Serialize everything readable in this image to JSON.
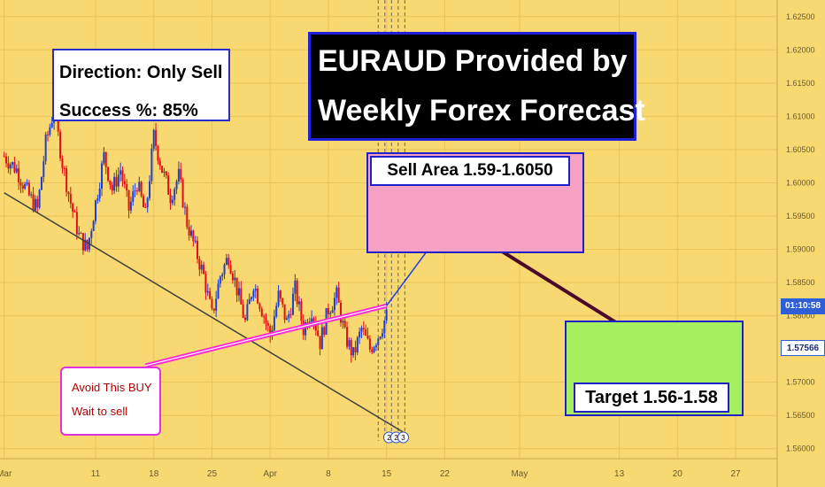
{
  "title": {
    "line1": "EURAUD Provided by",
    "line2": "Weekly Forex Forecast"
  },
  "direction_box": {
    "direction": "Direction: Only Sell",
    "success": "Success %:  85%"
  },
  "sell_area": {
    "label": "Sell Area 1.59-1.6050",
    "from": 1.59,
    "to": 1.605
  },
  "target_area": {
    "label": "Target 1.56-1.58",
    "from": 1.56,
    "to": 1.58
  },
  "avoid_box": {
    "line1": "Avoid This BUY",
    "line2": "Wait to sell"
  },
  "price_tags": {
    "time": "01:10:58",
    "last": "1.57566"
  },
  "event_markers": [
    "2",
    "2",
    "3"
  ],
  "colors": {
    "background": "#f8d870",
    "bull_candle": "#1e3fd0",
    "bear_candle": "#e01010",
    "trendline": "#404040",
    "avoid_line": "#ff2ad4",
    "forecast_up": "#1a3fe0",
    "forecast_down": "#4a0a2a"
  },
  "chart_data": {
    "type": "candlestick",
    "symbol": "EURAUD",
    "y_axis": {
      "ticks": [
        "1.62500",
        "1.62000",
        "1.61500",
        "1.61000",
        "1.60500",
        "1.60000",
        "1.59500",
        "1.59000",
        "1.58500",
        "1.58000",
        "1.57000",
        "1.56500",
        "1.56000"
      ],
      "range": [
        1.5585,
        1.6275
      ],
      "position": "right"
    },
    "x_axis": {
      "ticks": [
        {
          "label": "Mar",
          "day": 0
        },
        {
          "label": "11",
          "day": 11
        },
        {
          "label": "18",
          "day": 18
        },
        {
          "label": "25",
          "day": 25
        },
        {
          "label": "Apr",
          "day": 32
        },
        {
          "label": "8",
          "day": 39
        },
        {
          "label": "15",
          "day": 46
        },
        {
          "label": "22",
          "day": 53
        },
        {
          "label": "May",
          "day": 62
        },
        {
          "label": "13",
          "day": 74
        },
        {
          "label": "20",
          "day": 81
        },
        {
          "label": "27",
          "day": 88
        }
      ],
      "range": [
        -0.5,
        93
      ]
    },
    "close_path": [
      [
        0,
        1.604
      ],
      [
        1.5,
        1.602
      ],
      [
        3,
        1.598
      ],
      [
        4,
        1.596
      ],
      [
        5,
        1.606
      ],
      [
        6,
        1.611
      ],
      [
        7,
        1.603
      ],
      [
        8,
        1.597
      ],
      [
        9,
        1.592
      ],
      [
        10,
        1.59
      ],
      [
        11,
        1.597
      ],
      [
        12,
        1.604
      ],
      [
        13,
        1.599
      ],
      [
        14,
        1.602
      ],
      [
        15,
        1.596
      ],
      [
        16,
        1.6
      ],
      [
        17,
        1.595
      ],
      [
        18,
        1.607
      ],
      [
        19,
        1.602
      ],
      [
        20,
        1.598
      ],
      [
        21,
        1.601
      ],
      [
        22,
        1.594
      ],
      [
        23,
        1.59
      ],
      [
        24,
        1.586
      ],
      [
        25,
        1.58
      ],
      [
        26,
        1.586
      ],
      [
        27,
        1.589
      ],
      [
        28,
        1.584
      ],
      [
        29,
        1.579
      ],
      [
        30,
        1.585
      ],
      [
        31,
        1.581
      ],
      [
        32,
        1.577
      ],
      [
        33,
        1.583
      ],
      [
        34,
        1.579
      ],
      [
        35,
        1.584
      ],
      [
        36,
        1.578
      ],
      [
        37,
        1.581
      ],
      [
        38,
        1.576
      ],
      [
        39,
        1.581
      ],
      [
        40,
        1.583
      ],
      [
        41,
        1.577
      ],
      [
        42,
        1.574
      ],
      [
        43,
        1.578
      ],
      [
        44,
        1.575
      ],
      [
        45,
        1.577
      ],
      [
        46,
        1.58
      ]
    ],
    "trendline": {
      "from": [
        0,
        1.5985
      ],
      "to": [
        48,
        1.5625
      ]
    },
    "avoid_buy_line": {
      "from": [
        17,
        1.5725
      ],
      "to": [
        46,
        1.5815
      ]
    },
    "forecast_up": {
      "from": [
        46,
        1.5815
      ],
      "to": [
        54,
        1.595
      ]
    },
    "forecast_down": {
      "from": [
        55,
        1.5935
      ],
      "to": [
        80,
        1.574
      ]
    },
    "session_lines_days": [
      45,
      45.8,
      46.6,
      47.4,
      48.2
    ]
  }
}
